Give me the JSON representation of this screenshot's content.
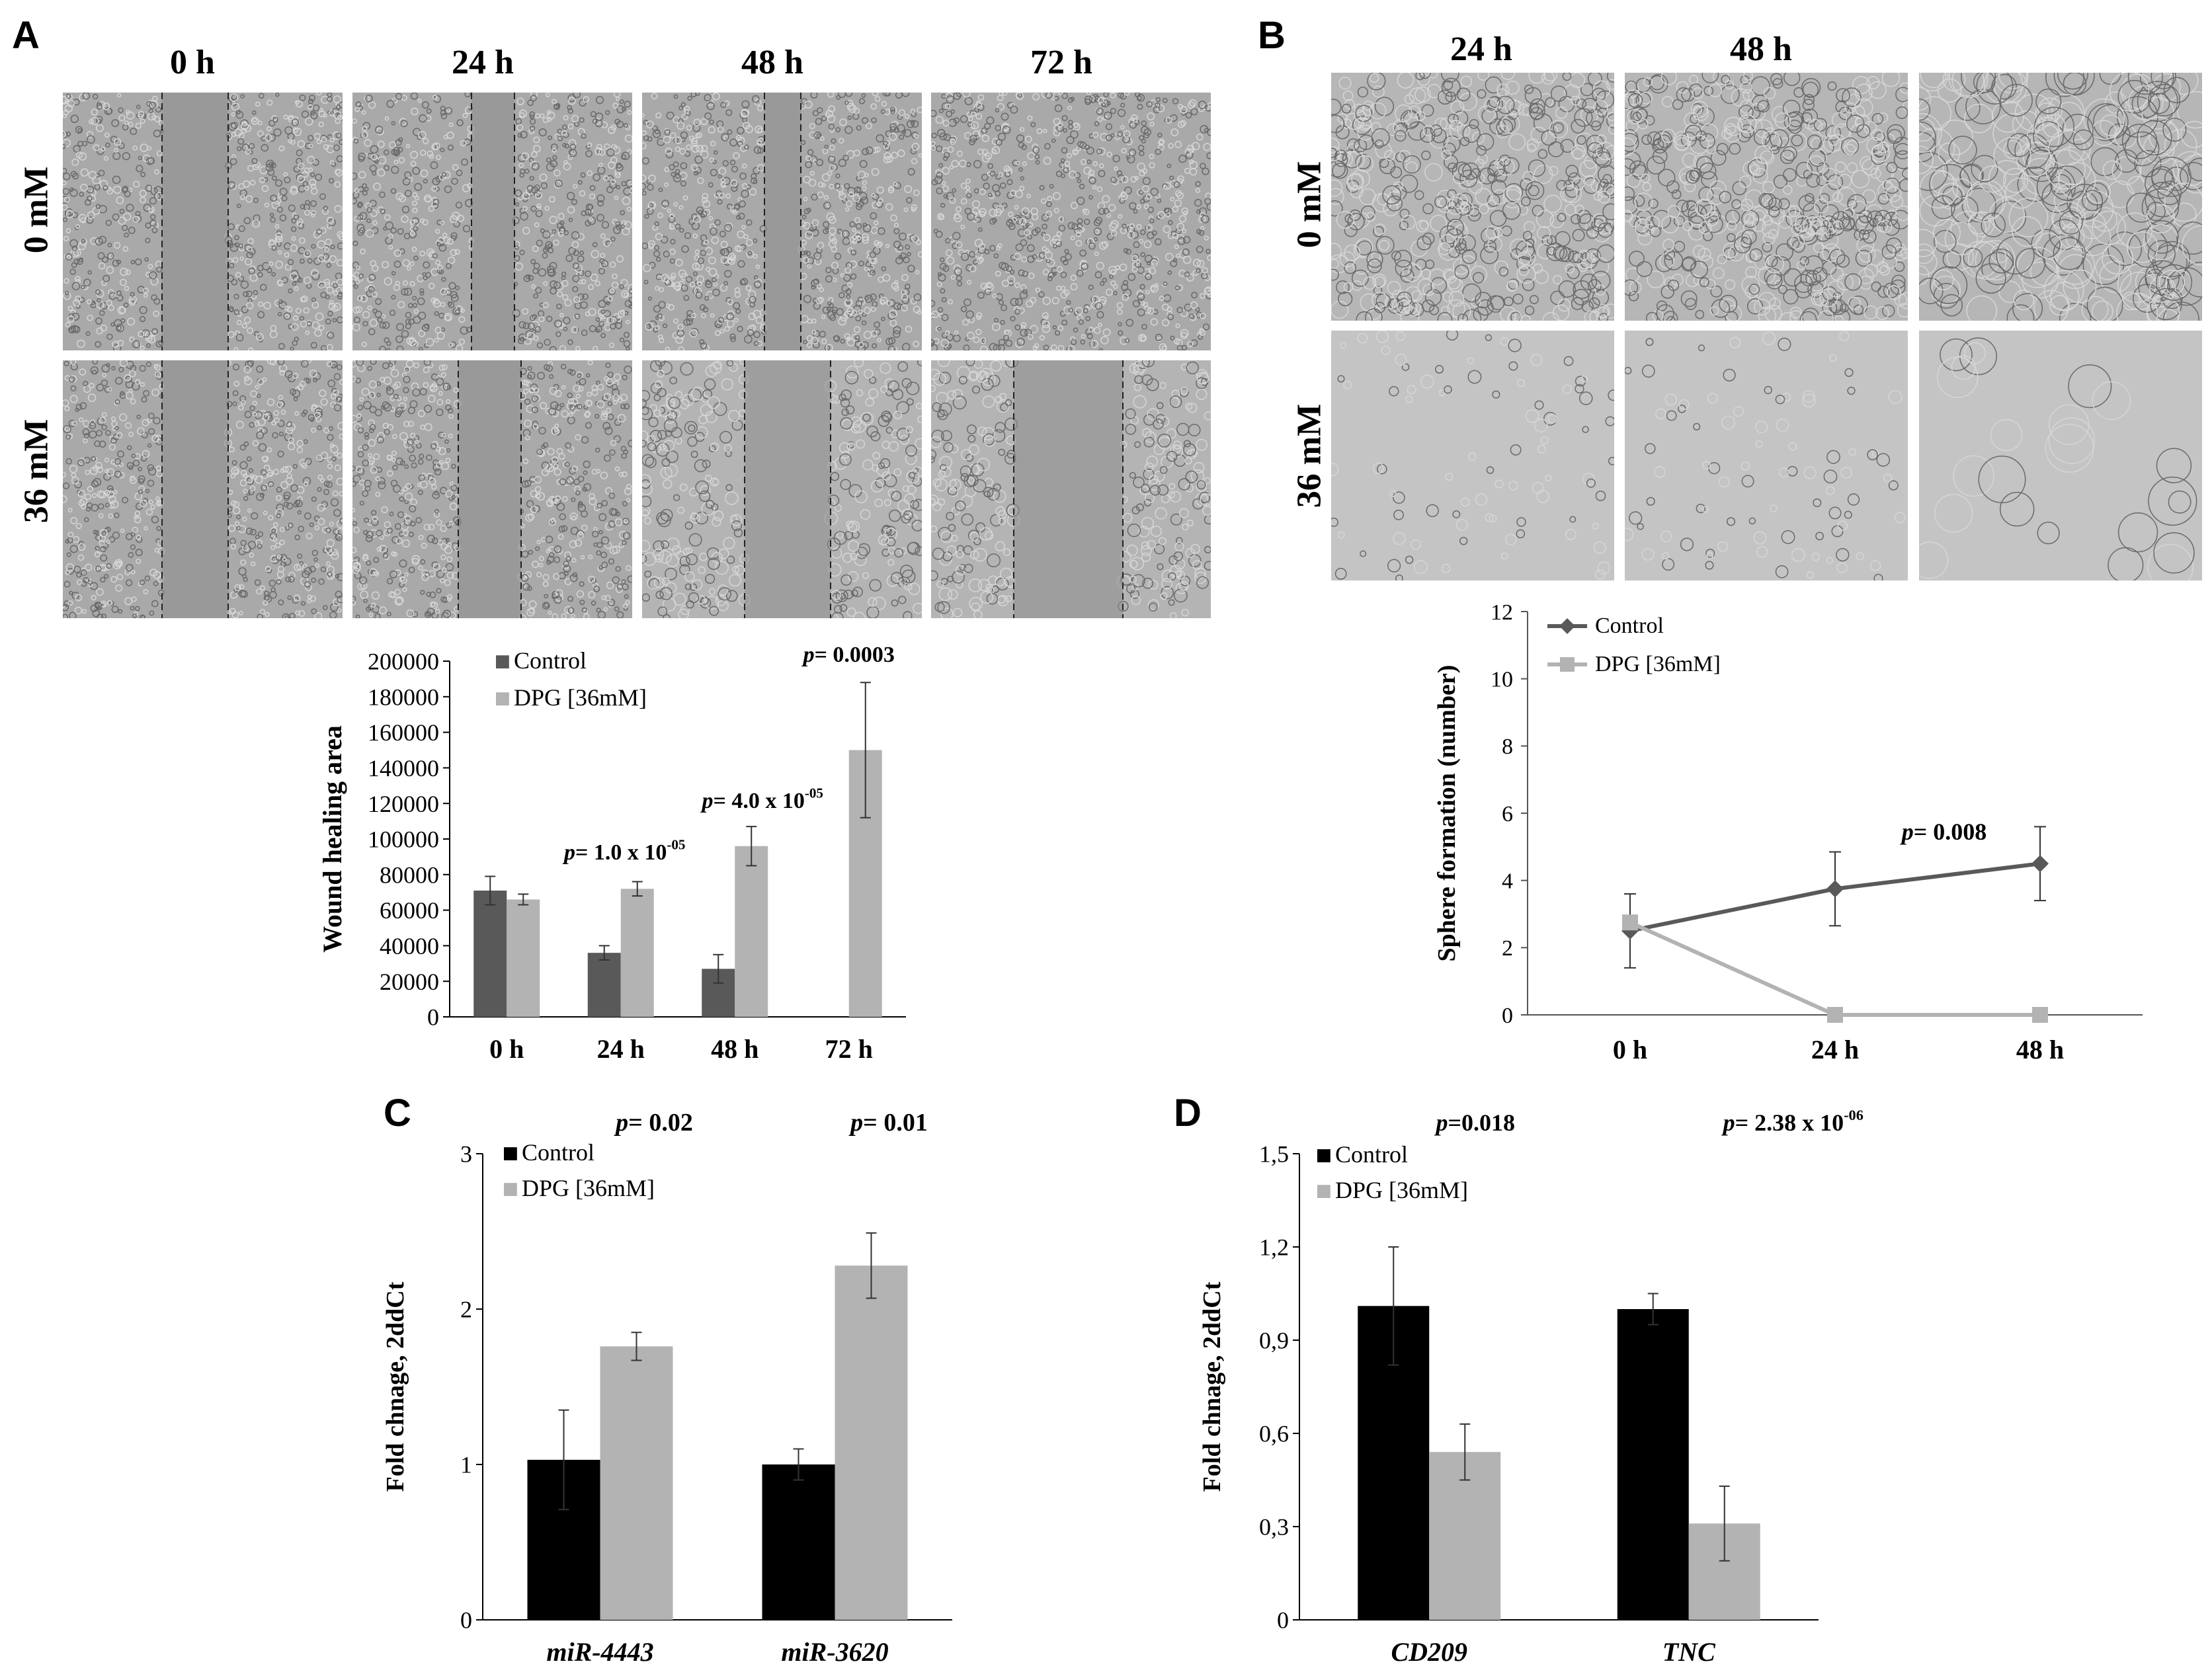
{
  "panels": {
    "A": {
      "letter": "A",
      "columns": [
        "0 h",
        "24 h",
        "48 h",
        "72 h"
      ],
      "rows": [
        "0 mM",
        "36 mM"
      ]
    },
    "B": {
      "letter": "B",
      "columns": [
        "24 h",
        "48 h"
      ],
      "rows": [
        "0 mM",
        "36 mM"
      ]
    },
    "C": {
      "letter": "C"
    },
    "D": {
      "letter": "D"
    }
  },
  "colors": {
    "control_dark": "#595959",
    "dpg_light": "#b3b3b3",
    "control_black": "#000000",
    "micro_bg": "#a9a9a9",
    "micro_light": "#c8c8c8"
  },
  "chart_data": [
    {
      "id": "A",
      "type": "bar",
      "categories": [
        "0 h",
        "24 h",
        "48 h",
        "72 h"
      ],
      "series": [
        {
          "name": "Control",
          "values": [
            71000,
            36000,
            27000,
            null
          ],
          "errors": [
            8000,
            4000,
            8000,
            null
          ]
        },
        {
          "name": "DPG [36mM]",
          "values": [
            66000,
            72000,
            96000,
            150000
          ],
          "errors": [
            3000,
            4000,
            11000,
            38000
          ]
        }
      ],
      "ylabel": "Wound healing area",
      "ylim": [
        0,
        200000
      ],
      "yticks": [
        0,
        20000,
        40000,
        60000,
        80000,
        100000,
        120000,
        140000,
        160000,
        180000,
        200000
      ],
      "ytick_labels": [
        "0",
        "20000",
        "40000",
        "60000",
        "80000",
        "100000",
        "120000",
        "140000",
        "160000",
        "180000",
        "200000"
      ],
      "legend_position": "top-left",
      "annotations": [
        {
          "category": "24 h",
          "p": "p",
          "text": "= 1.0 x 10",
          "sup": "-05"
        },
        {
          "category": "48 h",
          "p": "p",
          "text": "= 4.0 x 10",
          "sup": "-05"
        },
        {
          "category": "72 h",
          "p": "p",
          "text": "= 0.0003",
          "sup": ""
        }
      ]
    },
    {
      "id": "B",
      "type": "line",
      "x": [
        "0 h",
        "24 h",
        "48 h"
      ],
      "series": [
        {
          "name": "Control",
          "values": [
            2.5,
            3.75,
            4.5
          ],
          "errors": [
            1.1,
            1.1,
            1.1
          ],
          "marker": "diamond"
        },
        {
          "name": "DPG [36mM]",
          "values": [
            2.75,
            0,
            0
          ],
          "errors": [
            0,
            0,
            0
          ],
          "marker": "square"
        }
      ],
      "ylabel": "Sphere formation (number)",
      "ylim": [
        0,
        12
      ],
      "yticks": [
        0,
        2,
        4,
        6,
        8,
        10,
        12
      ],
      "legend_position": "top-left",
      "annotations": [
        {
          "x": "48 h",
          "p": "p",
          "text": "= 0.008",
          "sup": ""
        }
      ]
    },
    {
      "id": "C",
      "type": "bar",
      "categories": [
        "miR-4443",
        "miR-3620"
      ],
      "series": [
        {
          "name": "Control",
          "values": [
            1.03,
            1.0
          ],
          "errors": [
            0.32,
            0.1
          ]
        },
        {
          "name": "DPG [36mM]",
          "values": [
            1.76,
            2.28
          ],
          "errors": [
            0.09,
            0.21
          ]
        }
      ],
      "ylabel": "Fold chnage, 2ddCt",
      "ylim": [
        0,
        3
      ],
      "yticks": [
        0,
        1,
        2,
        3
      ],
      "ytick_labels": [
        "0",
        "1",
        "2",
        "3"
      ],
      "legend_position": "top-left",
      "annotations": [
        {
          "category": "miR-4443",
          "p": "p",
          "text": "= 0.02",
          "sup": ""
        },
        {
          "category": "miR-3620",
          "p": "p",
          "text": "= 0.01",
          "sup": ""
        }
      ]
    },
    {
      "id": "D",
      "type": "bar",
      "categories": [
        "CD209",
        "TNC"
      ],
      "series": [
        {
          "name": "Control",
          "values": [
            1.01,
            1.0
          ],
          "errors": [
            0.19,
            0.05
          ]
        },
        {
          "name": "DPG [36mM]",
          "values": [
            0.54,
            0.31
          ],
          "errors": [
            0.09,
            0.12
          ]
        }
      ],
      "ylabel": "Fold chnage, 2ddCt",
      "ylim": [
        0,
        1.5
      ],
      "yticks": [
        0,
        0.3,
        0.6,
        0.9,
        1.2,
        1.5
      ],
      "ytick_labels": [
        "0",
        "0,3",
        "0,6",
        "0,9",
        "1,2",
        "1,5"
      ],
      "legend_position": "top-left",
      "annotations": [
        {
          "category": "CD209",
          "p": "p",
          "text": "=0.018",
          "sup": ""
        },
        {
          "category": "TNC",
          "p": "p",
          "text": "= 2.38 x 10",
          "sup": "-06"
        }
      ]
    }
  ]
}
